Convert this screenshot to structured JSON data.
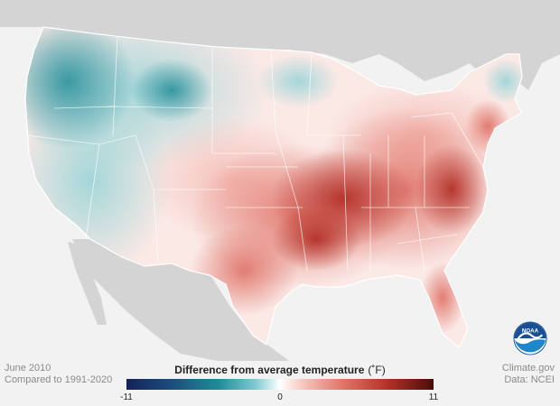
{
  "map": {
    "period": "June 2010",
    "baseline": "Compared to 1991-2020",
    "legend_title": "Difference from average temperature",
    "legend_unit": "(˚F)",
    "scale_min": "-11",
    "scale_mid": "0",
    "scale_max": "11",
    "source": "Climate.gov",
    "data_source": "Data: NCEI",
    "logo_text": "NOAA",
    "colors": {
      "cold_extreme": "#15225a",
      "cold": "#1f8c98",
      "neutral": "#ffffff",
      "warm": "#e2776a",
      "warm_extreme": "#4a0b0b",
      "land_outside": "#d4d4d4",
      "water": "#f2f2f2"
    }
  }
}
